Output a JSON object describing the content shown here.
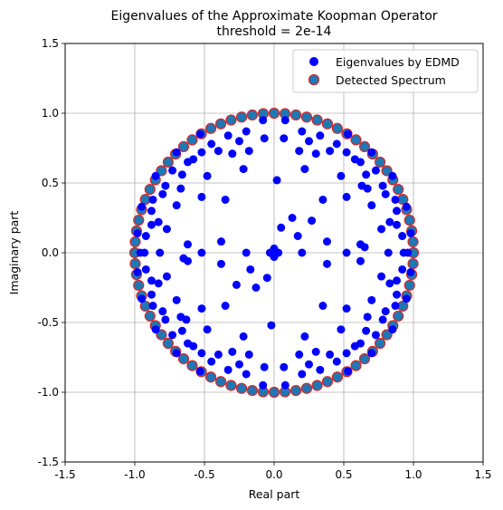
{
  "chart_data": {
    "type": "scatter",
    "title": "Eigenvalues of the Approximate Koopman Operator",
    "subtitle": "threshold = 2e-14",
    "xlabel": "Real part",
    "ylabel": "Imaginary part",
    "xlim": [
      -1.5,
      1.5
    ],
    "ylim": [
      -1.5,
      1.5
    ],
    "xticks": [
      "-1.5",
      "-1.0",
      "-0.5",
      "0.0",
      "0.5",
      "1.0",
      "1.5"
    ],
    "yticks": [
      "-1.5",
      "-1.0",
      "-0.5",
      "0.0",
      "0.5",
      "1.0",
      "1.5"
    ],
    "grid": true,
    "legend_position": "top-right",
    "series": [
      {
        "name": "Eigenvalues by EDMD",
        "color": "#0000ff",
        "points": [
          [
            0.08,
            0.95
          ],
          [
            -0.08,
            0.95
          ],
          [
            0.2,
            0.87
          ],
          [
            -0.2,
            0.87
          ],
          [
            0.33,
            0.84
          ],
          [
            -0.33,
            0.84
          ],
          [
            0.53,
            0.85
          ],
          [
            -0.53,
            0.85
          ],
          [
            0.7,
            0.72
          ],
          [
            -0.7,
            0.72
          ],
          [
            0.85,
            0.55
          ],
          [
            -0.85,
            0.55
          ],
          [
            0.95,
            0.33
          ],
          [
            -0.95,
            0.33
          ],
          [
            0.98,
            0.14
          ],
          [
            -0.98,
            0.14
          ],
          [
            0.98,
            -0.14
          ],
          [
            -0.98,
            -0.14
          ],
          [
            0.95,
            -0.33
          ],
          [
            -0.95,
            -0.33
          ],
          [
            0.85,
            -0.55
          ],
          [
            -0.85,
            -0.55
          ],
          [
            0.7,
            -0.72
          ],
          [
            -0.7,
            -0.72
          ],
          [
            0.53,
            -0.85
          ],
          [
            -0.53,
            -0.85
          ],
          [
            0.33,
            -0.84
          ],
          [
            -0.33,
            -0.84
          ],
          [
            0.2,
            -0.87
          ],
          [
            -0.2,
            -0.87
          ],
          [
            0.08,
            -0.95
          ],
          [
            -0.08,
            -0.95
          ],
          [
            0.25,
            0.8
          ],
          [
            -0.25,
            0.8
          ],
          [
            0.45,
            0.78
          ],
          [
            -0.45,
            0.78
          ],
          [
            0.62,
            0.65
          ],
          [
            -0.62,
            0.65
          ],
          [
            0.78,
            0.48
          ],
          [
            -0.78,
            0.48
          ],
          [
            0.88,
            0.3
          ],
          [
            -0.88,
            0.3
          ],
          [
            0.92,
            0.12
          ],
          [
            -0.92,
            0.12
          ],
          [
            0.92,
            -0.12
          ],
          [
            -0.92,
            -0.12
          ],
          [
            0.88,
            -0.3
          ],
          [
            -0.88,
            -0.3
          ],
          [
            0.78,
            -0.48
          ],
          [
            -0.78,
            -0.48
          ],
          [
            0.62,
            -0.65
          ],
          [
            -0.62,
            -0.65
          ],
          [
            0.45,
            -0.78
          ],
          [
            -0.45,
            -0.78
          ],
          [
            0.25,
            -0.8
          ],
          [
            -0.25,
            -0.8
          ],
          [
            0.07,
            0.82
          ],
          [
            -0.07,
            0.82
          ],
          [
            0.07,
            -0.82
          ],
          [
            -0.07,
            -0.82
          ],
          [
            0.4,
            0.73
          ],
          [
            -0.4,
            0.73
          ],
          [
            0.66,
            0.56
          ],
          [
            -0.66,
            0.56
          ],
          [
            0.8,
            0.42
          ],
          [
            -0.8,
            0.42
          ],
          [
            0.83,
            0.22
          ],
          [
            -0.83,
            0.22
          ],
          [
            0.83,
            -0.22
          ],
          [
            -0.83,
            -0.22
          ],
          [
            0.8,
            -0.42
          ],
          [
            -0.8,
            -0.42
          ],
          [
            0.66,
            -0.56
          ],
          [
            -0.66,
            -0.56
          ],
          [
            0.4,
            -0.73
          ],
          [
            -0.4,
            -0.73
          ],
          [
            0.18,
            0.73
          ],
          [
            -0.18,
            0.73
          ],
          [
            0.18,
            -0.73
          ],
          [
            -0.18,
            -0.73
          ],
          [
            0.3,
            0.71
          ],
          [
            -0.3,
            0.71
          ],
          [
            0.52,
            0.72
          ],
          [
            -0.52,
            0.72
          ],
          [
            0.58,
            0.67
          ],
          [
            -0.58,
            0.67
          ],
          [
            0.73,
            0.59
          ],
          [
            -0.73,
            0.59
          ],
          [
            0.87,
            0.38
          ],
          [
            -0.87,
            0.38
          ],
          [
            0.88,
            0.2
          ],
          [
            -0.88,
            0.2
          ],
          [
            0.88,
            -0.2
          ],
          [
            -0.88,
            -0.2
          ],
          [
            0.87,
            -0.38
          ],
          [
            -0.87,
            -0.38
          ],
          [
            0.73,
            -0.59
          ],
          [
            -0.73,
            -0.59
          ],
          [
            0.58,
            -0.67
          ],
          [
            -0.58,
            -0.67
          ],
          [
            0.52,
            -0.72
          ],
          [
            -0.52,
            -0.72
          ],
          [
            0.3,
            -0.71
          ],
          [
            -0.3,
            -0.71
          ],
          [
            0.22,
            0.6
          ],
          [
            -0.22,
            0.6
          ],
          [
            0.22,
            -0.6
          ],
          [
            -0.22,
            -0.6
          ],
          [
            0.48,
            0.55
          ],
          [
            -0.48,
            0.55
          ],
          [
            0.48,
            -0.55
          ],
          [
            -0.48,
            -0.55
          ],
          [
            0.67,
            0.46
          ],
          [
            -0.67,
            0.46
          ],
          [
            0.67,
            -0.46
          ],
          [
            -0.67,
            -0.46
          ],
          [
            0.52,
            0.4
          ],
          [
            -0.52,
            0.4
          ],
          [
            0.52,
            -0.4
          ],
          [
            -0.52,
            -0.4
          ],
          [
            0.35,
            0.38
          ],
          [
            -0.35,
            0.38
          ],
          [
            0.35,
            -0.38
          ],
          [
            -0.35,
            -0.38
          ],
          [
            0.7,
            0.34
          ],
          [
            -0.7,
            0.34
          ],
          [
            0.7,
            -0.34
          ],
          [
            -0.7,
            -0.34
          ],
          [
            0.77,
            0.17
          ],
          [
            -0.77,
            0.17
          ],
          [
            0.77,
            -0.17
          ],
          [
            -0.77,
            -0.17
          ],
          [
            0.62,
            0.06
          ],
          [
            -0.62,
            0.06
          ],
          [
            0.62,
            -0.06
          ],
          [
            -0.62,
            -0.06
          ],
          [
            0.65,
            0.04
          ],
          [
            -0.65,
            -0.04
          ],
          [
            0.27,
            0.23
          ],
          [
            -0.27,
            -0.23
          ],
          [
            0.05,
            0.18
          ],
          [
            -0.05,
            -0.18
          ],
          [
            0.17,
            0.12
          ],
          [
            -0.17,
            -0.12
          ],
          [
            0.52,
            0.0
          ],
          [
            -0.52,
            0.0
          ],
          [
            0.02,
            0.52
          ],
          [
            -0.02,
            -0.52
          ],
          [
            0.63,
            0.48
          ],
          [
            -0.63,
            -0.48
          ],
          [
            0.2,
            0.0
          ],
          [
            -0.2,
            0.0
          ],
          [
            0.0,
            0.0
          ],
          [
            0.03,
            0.0
          ],
          [
            -0.03,
            0.0
          ],
          [
            0.0,
            0.03
          ],
          [
            0.0,
            -0.03
          ],
          [
            0.96,
            0.0
          ],
          [
            -0.96,
            0.0
          ],
          [
            0.93,
            0.0
          ],
          [
            -0.93,
            0.0
          ],
          [
            0.82,
            0.0
          ],
          [
            -0.82,
            0.0
          ],
          [
            0.13,
            0.25
          ],
          [
            -0.13,
            -0.25
          ],
          [
            0.38,
            0.08
          ],
          [
            -0.38,
            -0.08
          ],
          [
            0.38,
            -0.08
          ],
          [
            -0.38,
            0.08
          ]
        ]
      },
      {
        "name": "Detected Spectrum",
        "color": "#1f77b4",
        "edge_color": "#d62728",
        "magnitude": 1.0,
        "count": 80
      }
    ]
  }
}
